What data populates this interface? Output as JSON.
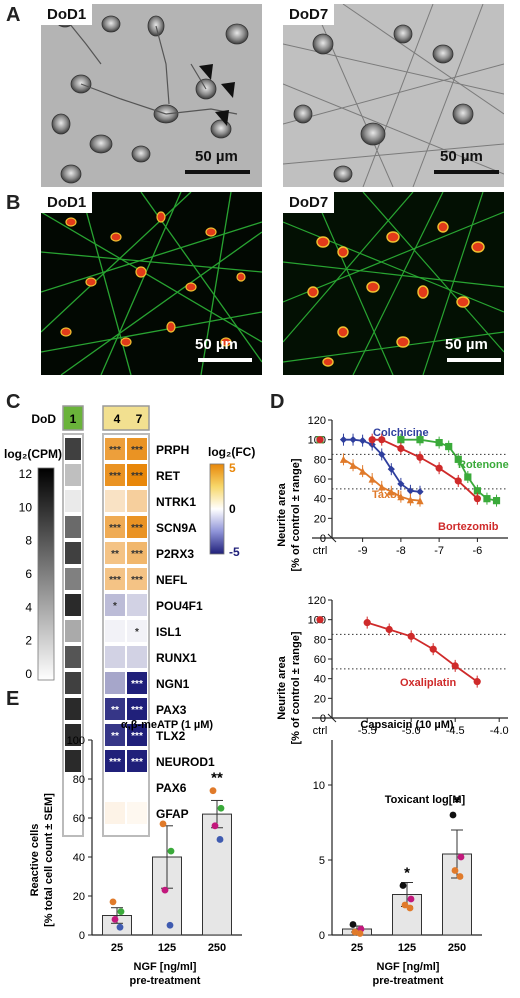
{
  "panels": {
    "A": {
      "letter": "A",
      "left_label": "DoD1",
      "right_label": "DoD7",
      "left_scale": "50 µm",
      "right_scale": "50 µm"
    },
    "B": {
      "letter": "B",
      "left_label": "DoD1",
      "right_label": "DoD7",
      "left_scale": "50 µm",
      "right_scale": "50 µm"
    },
    "C": {
      "letter": "C",
      "dod_label": "DoD",
      "dod_cols": [
        "1",
        "4",
        "7"
      ],
      "cpm_label": "log₂(CPM)",
      "cpm_ticks": [
        "12",
        "10",
        "8",
        "6",
        "4",
        "2",
        "0"
      ],
      "fc_label": "log₂(FC)",
      "fc_ticks": [
        "5",
        "0",
        "-5"
      ],
      "genes": [
        "PRPH",
        "RET",
        "NTRK1",
        "SCN9A",
        "P2RX3",
        "NEFL",
        "POU4F1",
        "ISL1",
        "RUNX1",
        "NGN1",
        "PAX3",
        "TLX2",
        "NEUROD1",
        "PAX6",
        "GFAP"
      ],
      "cpm_values": [
        9,
        3,
        1,
        7,
        9,
        6,
        10,
        4,
        8,
        9,
        10,
        10,
        10,
        0,
        0
      ],
      "fc4_values": [
        4,
        4.5,
        1.2,
        3.5,
        2.5,
        2.5,
        -1.5,
        -0.3,
        -1,
        -2,
        -4.5,
        -4.5,
        -5,
        0,
        0.5
      ],
      "fc7_values": [
        4.5,
        5,
        2,
        4.5,
        3,
        2.5,
        -1,
        -0.3,
        -1,
        -5,
        -5,
        -5,
        -5,
        0,
        0.3
      ],
      "fc4_stars": [
        "***",
        "***",
        "",
        "***",
        "**",
        "***",
        "*",
        "",
        "",
        "",
        "**",
        "**",
        "***",
        "",
        ""
      ],
      "fc7_stars": [
        "***",
        "***",
        "",
        "***",
        "***",
        "***",
        "",
        "*",
        "",
        "***",
        "***",
        "***",
        "***",
        "",
        ""
      ]
    },
    "D": {
      "letter": "D",
      "ylabel_line1": "Neurite area",
      "ylabel_line2": "[% of control ± range]",
      "xlabel": "Toxicant log[M]",
      "ctrl_label": "ctrl"
    },
    "E": {
      "letter": "E",
      "ylabel_line1": "Reactive cells",
      "ylabel_line2": "[% total cell count ± SEM]",
      "xlabel_line1": "NGF [ng/ml]",
      "xlabel_line2": "pre-treatment"
    }
  },
  "chart_data": [
    {
      "id": "D-top",
      "type": "scatter",
      "x_scale": "log",
      "xlim": [
        -9.8,
        -5.2
      ],
      "x_ticks": [
        "-9",
        "-8",
        "-7",
        "-6"
      ],
      "x_tick_values": [
        -9,
        -8,
        -7,
        -6
      ],
      "ylim": [
        0,
        120
      ],
      "y_ticks": [
        "0",
        "20",
        "40",
        "60",
        "80",
        "100",
        "120"
      ],
      "reference_lines": [
        85,
        50
      ],
      "series": [
        {
          "name": "Colchicine",
          "color": "#2f3f9e",
          "marker": "diamond",
          "x": [
            -9.5,
            -9.25,
            -9,
            -8.75,
            -8.5,
            -8.25,
            -8,
            -7.75,
            -7.5
          ],
          "y": [
            100,
            100,
            99,
            95,
            85,
            70,
            55,
            48,
            47
          ],
          "ctrl": 100
        },
        {
          "name": "Taxol",
          "color": "#e07a2a",
          "marker": "triangle",
          "x": [
            -9.5,
            -9.25,
            -9,
            -8.75,
            -8.5,
            -8.25,
            -8,
            -7.75,
            -7.5
          ],
          "y": [
            80,
            74,
            68,
            60,
            52,
            47,
            42,
            39,
            38
          ],
          "ctrl": 100
        },
        {
          "name": "Rotenone",
          "color": "#3aaa3a",
          "marker": "square",
          "x": [
            -8,
            -7.5,
            -7,
            -6.75,
            -6.5,
            -6.25,
            -6,
            -5.75,
            -5.5
          ],
          "y": [
            100,
            100,
            97,
            93,
            80,
            62,
            48,
            40,
            38
          ],
          "ctrl": 100
        },
        {
          "name": "Bortezomib",
          "color": "#cf2a2a",
          "marker": "circle",
          "x": [
            -8.75,
            -8.5,
            -8,
            -7.5,
            -7,
            -6.5,
            -6
          ],
          "y": [
            100,
            100,
            91,
            82,
            71,
            58,
            40
          ],
          "ctrl": 100
        }
      ]
    },
    {
      "id": "D-bottom",
      "type": "scatter",
      "xlim": [
        -5.9,
        -3.9
      ],
      "x_ticks": [
        "-5.5",
        "-5.0",
        "-4.5",
        "-4.0"
      ],
      "x_tick_values": [
        -5.5,
        -5.0,
        -4.5,
        -4.0
      ],
      "ylim": [
        0,
        120
      ],
      "y_ticks": [
        "0",
        "20",
        "40",
        "60",
        "80",
        "100",
        "120"
      ],
      "reference_lines": [
        85,
        50
      ],
      "series": [
        {
          "name": "Oxaliplatin",
          "color": "#cf2a2a",
          "marker": "circle",
          "x": [
            -5.5,
            -5.25,
            -5.0,
            -4.75,
            -4.5,
            -4.25
          ],
          "y": [
            97,
            90,
            83,
            70,
            53,
            37
          ],
          "ctrl": 100
        }
      ]
    },
    {
      "id": "E-left",
      "type": "bar",
      "title": "α,β-meATP (1 µM)",
      "categories": [
        "25",
        "125",
        "250"
      ],
      "values": [
        10,
        40,
        62
      ],
      "sem": [
        4,
        16,
        7
      ],
      "ylim": [
        0,
        100
      ],
      "y_ticks": [
        "0",
        "20",
        "40",
        "60",
        "80",
        "100"
      ],
      "significance": [
        "",
        "",
        "**"
      ],
      "points": [
        [
          17,
          12,
          8,
          4
        ],
        [
          57,
          43,
          23,
          5
        ],
        [
          74,
          65,
          56,
          49
        ]
      ],
      "point_colors": [
        "#e07a2a",
        "#3aaa3a",
        "#c2187c",
        "#3f5bb0"
      ]
    },
    {
      "id": "E-right",
      "type": "bar",
      "title": "Capsaicin (10 µM)",
      "categories": [
        "25",
        "125",
        "250"
      ],
      "values": [
        0.4,
        2.7,
        5.4
      ],
      "sem": [
        0.2,
        0.8,
        1.6
      ],
      "ylim": [
        0,
        13
      ],
      "y_ticks": [
        "0",
        "5",
        "10"
      ],
      "significance": [
        "",
        "*",
        "*"
      ],
      "points": [
        [
          0.7,
          0.4,
          0.2,
          0.1
        ],
        [
          3.3,
          2.4,
          2.0,
          1.8
        ],
        [
          8.0,
          5.2,
          4.3,
          3.9
        ]
      ],
      "point_colors": [
        "#111111",
        "#c2187c",
        "#e07a2a",
        "#e07a2a"
      ]
    }
  ]
}
